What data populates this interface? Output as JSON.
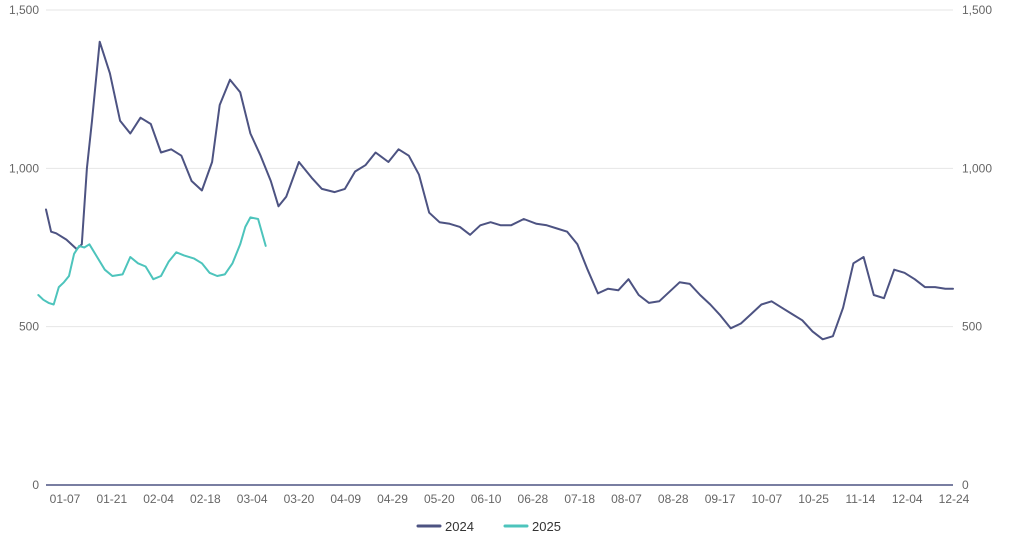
{
  "chart_data": {
    "type": "line",
    "title": "",
    "xlabel": "",
    "ylabel": "",
    "ylim": [
      0,
      1500
    ],
    "y_ticks": [
      0,
      500,
      1000,
      1500
    ],
    "y_tick_labels": [
      "0",
      "500",
      "1,000",
      "1,500"
    ],
    "x_tick_labels": [
      "01-07",
      "01-21",
      "02-04",
      "02-18",
      "03-04",
      "03-20",
      "04-09",
      "04-29",
      "05-20",
      "06-10",
      "06-28",
      "07-18",
      "08-07",
      "08-28",
      "09-17",
      "10-07",
      "10-25",
      "11-14",
      "12-04",
      "12-24"
    ],
    "grid": true,
    "dual_y_axis_mirrored": true,
    "legend_position": "bottom-center",
    "series": [
      {
        "name": "2024",
        "color": "#4d5382",
        "x": [
          "01-04",
          "01-06",
          "01-08",
          "01-12",
          "01-16",
          "01-18",
          "01-20",
          "01-22",
          "01-25",
          "01-29",
          "02-02",
          "02-06",
          "02-10",
          "02-14",
          "02-18",
          "02-22",
          "02-26",
          "03-01",
          "03-05",
          "03-09",
          "03-12",
          "03-16",
          "03-20",
          "03-24",
          "03-28",
          "04-01",
          "04-04",
          "04-07",
          "04-12",
          "04-17",
          "04-21",
          "04-26",
          "04-30",
          "05-04",
          "05-08",
          "05-12",
          "05-17",
          "05-21",
          "05-25",
          "05-29",
          "06-02",
          "06-06",
          "06-10",
          "06-14",
          "06-18",
          "06-22",
          "06-26",
          "06-30",
          "07-04",
          "07-09",
          "07-14",
          "07-18",
          "07-22",
          "07-26",
          "07-30",
          "08-03",
          "08-07",
          "08-11",
          "08-15",
          "08-19",
          "08-23",
          "08-27",
          "08-31",
          "09-04",
          "09-08",
          "09-12",
          "09-16",
          "09-20",
          "09-24",
          "09-28",
          "10-02",
          "10-06",
          "10-10",
          "10-14",
          "10-18",
          "10-22",
          "10-26",
          "10-30",
          "11-03",
          "11-07",
          "11-11",
          "11-15",
          "11-19",
          "11-23",
          "11-27",
          "12-01",
          "12-05",
          "12-09",
          "12-13",
          "12-17",
          "12-21",
          "12-24"
        ],
        "values": [
          870,
          800,
          795,
          775,
          745,
          760,
          1000,
          1150,
          1400,
          1300,
          1150,
          1110,
          1160,
          1140,
          1050,
          1060,
          1040,
          960,
          930,
          1020,
          1200,
          1280,
          1240,
          1110,
          1040,
          960,
          880,
          910,
          1020,
          970,
          935,
          925,
          935,
          990,
          1010,
          1050,
          1020,
          1060,
          1040,
          980,
          860,
          830,
          825,
          815,
          790,
          820,
          830,
          820,
          820,
          840,
          825,
          820,
          810,
          800,
          760,
          680,
          605,
          620,
          615,
          650,
          600,
          575,
          580,
          610,
          640,
          635,
          600,
          570,
          535,
          495,
          510,
          540,
          570,
          580,
          560,
          540,
          520,
          485,
          460,
          470,
          560,
          700,
          720,
          600,
          590,
          680,
          670,
          650,
          625,
          625,
          620,
          620
        ]
      },
      {
        "name": "2025",
        "color": "#4dc4bc",
        "x": [
          "01-01",
          "01-03",
          "01-05",
          "01-07",
          "01-09",
          "01-11",
          "01-13",
          "01-15",
          "01-17",
          "01-19",
          "01-21",
          "01-24",
          "01-27",
          "01-30",
          "02-03",
          "02-06",
          "02-09",
          "02-12",
          "02-15",
          "02-18",
          "02-21",
          "02-24",
          "02-27",
          "03-02",
          "03-05",
          "03-08",
          "03-11",
          "03-14",
          "03-17",
          "03-20",
          "03-22",
          "03-24",
          "03-27",
          "03-30"
        ],
        "values": [
          600,
          585,
          575,
          570,
          625,
          640,
          660,
          730,
          755,
          750,
          760,
          720,
          680,
          660,
          665,
          720,
          700,
          690,
          650,
          660,
          705,
          735,
          725,
          715,
          700,
          670,
          660,
          665,
          700,
          760,
          815,
          845,
          840,
          755
        ]
      }
    ]
  }
}
